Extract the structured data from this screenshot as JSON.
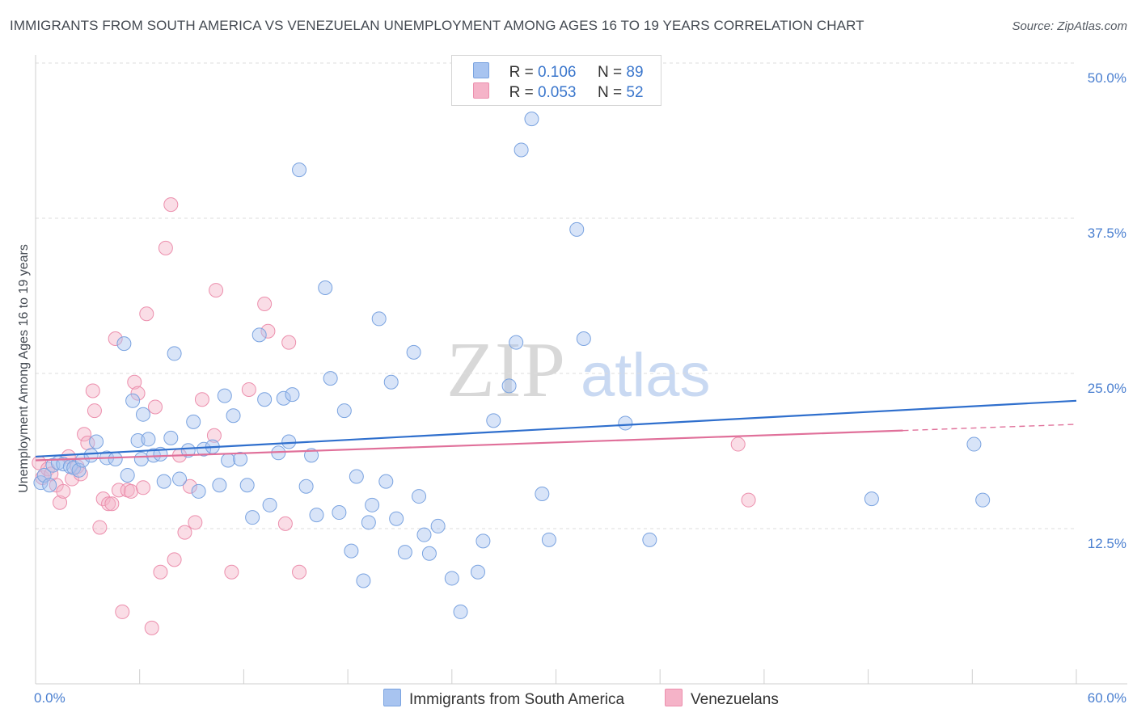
{
  "title": "IMMIGRANTS FROM SOUTH AMERICA VS VENEZUELAN UNEMPLOYMENT AMONG AGES 16 TO 19 YEARS CORRELATION CHART",
  "source": "Source: ZipAtlas.com",
  "watermark": {
    "zip": "ZIP",
    "atlas": "atlas"
  },
  "legend": {
    "rows": [
      {
        "r_label": "R = ",
        "r_value": "0.106",
        "n_label": "N = ",
        "n_value": "89",
        "color": "#a8c4f0"
      },
      {
        "r_label": "R = ",
        "r_value": "0.053",
        "n_label": "N = ",
        "n_value": "52",
        "color": "#f5b3c8"
      }
    ]
  },
  "bottom_legend": [
    {
      "label": "Immigrants from South America",
      "color": "#a8c4f0"
    },
    {
      "label": "Venezuelans",
      "color": "#f5b3c8"
    }
  ],
  "chart_data": {
    "type": "scatter",
    "title": "IMMIGRANTS FROM SOUTH AMERICA VS VENEZUELAN UNEMPLOYMENT AMONG AGES 16 TO 19 YEARS CORRELATION CHART",
    "xlabel": "",
    "ylabel": "Unemployment Among Ages 16 to 19 years",
    "xlim": [
      0,
      60
    ],
    "ylim": [
      0,
      50
    ],
    "x_tick_labels": [
      "0.0%",
      "60.0%"
    ],
    "y_ticks": [
      12.5,
      25.0,
      37.5,
      50.0
    ],
    "y_tick_labels": [
      "12.5%",
      "25.0%",
      "37.5%",
      "50.0%"
    ],
    "grid": true,
    "series": [
      {
        "name": "Immigrants from South America",
        "color": "#a8c4f0",
        "stroke": "#7aa3e0",
        "trend": {
          "x": [
            0,
            60
          ],
          "y": [
            18.3,
            22.8
          ],
          "color": "#2f6fcd"
        },
        "points": [
          [
            0.3,
            16.2
          ],
          [
            0.5,
            16.8
          ],
          [
            0.8,
            16.0
          ],
          [
            1.0,
            17.6
          ],
          [
            1.3,
            17.8
          ],
          [
            1.6,
            17.7
          ],
          [
            2.0,
            17.5
          ],
          [
            2.2,
            17.4
          ],
          [
            2.5,
            17.2
          ],
          [
            2.7,
            18.0
          ],
          [
            3.2,
            18.4
          ],
          [
            3.5,
            19.5
          ],
          [
            4.1,
            18.2
          ],
          [
            4.6,
            18.1
          ],
          [
            5.1,
            27.4
          ],
          [
            5.3,
            16.8
          ],
          [
            5.6,
            22.8
          ],
          [
            5.9,
            19.6
          ],
          [
            6.1,
            18.1
          ],
          [
            6.2,
            21.7
          ],
          [
            6.5,
            19.7
          ],
          [
            6.8,
            18.4
          ],
          [
            7.2,
            18.5
          ],
          [
            7.4,
            16.3
          ],
          [
            7.8,
            19.8
          ],
          [
            8.0,
            26.6
          ],
          [
            8.3,
            16.5
          ],
          [
            8.8,
            18.8
          ],
          [
            9.1,
            21.1
          ],
          [
            9.4,
            15.5
          ],
          [
            9.7,
            18.9
          ],
          [
            10.2,
            19.1
          ],
          [
            10.6,
            16.0
          ],
          [
            10.9,
            23.2
          ],
          [
            11.1,
            18.0
          ],
          [
            11.4,
            21.6
          ],
          [
            11.8,
            18.1
          ],
          [
            12.2,
            16.0
          ],
          [
            12.5,
            13.4
          ],
          [
            12.9,
            28.1
          ],
          [
            13.2,
            22.9
          ],
          [
            13.5,
            14.4
          ],
          [
            14.0,
            18.6
          ],
          [
            14.3,
            23.0
          ],
          [
            14.6,
            19.5
          ],
          [
            14.8,
            23.3
          ],
          [
            15.2,
            41.4
          ],
          [
            15.6,
            15.9
          ],
          [
            15.9,
            18.4
          ],
          [
            16.2,
            13.6
          ],
          [
            16.7,
            31.9
          ],
          [
            17.0,
            24.6
          ],
          [
            17.5,
            13.8
          ],
          [
            17.8,
            22.0
          ],
          [
            18.2,
            10.7
          ],
          [
            18.5,
            16.7
          ],
          [
            18.9,
            8.3
          ],
          [
            19.2,
            13.0
          ],
          [
            19.4,
            14.4
          ],
          [
            19.8,
            29.4
          ],
          [
            20.2,
            16.3
          ],
          [
            20.5,
            24.3
          ],
          [
            20.8,
            13.3
          ],
          [
            21.3,
            10.6
          ],
          [
            21.8,
            26.7
          ],
          [
            22.1,
            15.1
          ],
          [
            22.4,
            12.0
          ],
          [
            22.7,
            10.5
          ],
          [
            23.2,
            12.7
          ],
          [
            24.0,
            8.5
          ],
          [
            24.5,
            5.8
          ],
          [
            25.5,
            9.0
          ],
          [
            25.8,
            11.5
          ],
          [
            26.4,
            21.2
          ],
          [
            27.3,
            24.0
          ],
          [
            27.7,
            27.5
          ],
          [
            28.0,
            43.0
          ],
          [
            28.6,
            45.5
          ],
          [
            29.2,
            15.3
          ],
          [
            29.6,
            11.6
          ],
          [
            31.2,
            36.6
          ],
          [
            31.6,
            27.8
          ],
          [
            34.0,
            21.0
          ],
          [
            35.4,
            11.6
          ],
          [
            48.2,
            14.9
          ],
          [
            54.1,
            19.3
          ],
          [
            54.6,
            14.8
          ]
        ]
      },
      {
        "name": "Venezuelans",
        "color": "#f5b3c8",
        "stroke": "#ec8fad",
        "trend": {
          "x": [
            0,
            50
          ],
          "y": [
            18.0,
            20.4
          ],
          "x_dashed": [
            50,
            60
          ],
          "y_dashed": [
            20.4,
            20.9
          ],
          "color": "#e0709a"
        },
        "points": [
          [
            0.2,
            17.8
          ],
          [
            0.4,
            16.6
          ],
          [
            0.7,
            17.3
          ],
          [
            0.9,
            16.9
          ],
          [
            1.2,
            16.0
          ],
          [
            1.4,
            14.6
          ],
          [
            1.6,
            15.5
          ],
          [
            1.9,
            18.3
          ],
          [
            2.1,
            16.5
          ],
          [
            2.4,
            17.5
          ],
          [
            2.6,
            16.9
          ],
          [
            2.8,
            20.1
          ],
          [
            3.0,
            19.4
          ],
          [
            3.3,
            23.6
          ],
          [
            3.4,
            22.0
          ],
          [
            3.7,
            12.6
          ],
          [
            3.9,
            14.9
          ],
          [
            4.2,
            14.5
          ],
          [
            4.4,
            14.5
          ],
          [
            4.6,
            27.8
          ],
          [
            4.8,
            15.6
          ],
          [
            5.0,
            5.8
          ],
          [
            5.3,
            15.6
          ],
          [
            5.5,
            15.5
          ],
          [
            5.7,
            24.3
          ],
          [
            5.9,
            23.4
          ],
          [
            6.2,
            15.8
          ],
          [
            6.4,
            29.8
          ],
          [
            6.7,
            4.5
          ],
          [
            6.9,
            22.3
          ],
          [
            7.2,
            9.0
          ],
          [
            7.5,
            35.1
          ],
          [
            7.8,
            38.6
          ],
          [
            8.0,
            10.0
          ],
          [
            8.3,
            18.4
          ],
          [
            8.6,
            12.2
          ],
          [
            8.9,
            15.9
          ],
          [
            9.2,
            13.0
          ],
          [
            9.6,
            22.9
          ],
          [
            10.3,
            20.0
          ],
          [
            10.4,
            31.7
          ],
          [
            11.3,
            9.0
          ],
          [
            12.3,
            23.7
          ],
          [
            13.2,
            30.6
          ],
          [
            13.4,
            28.4
          ],
          [
            14.4,
            12.9
          ],
          [
            14.6,
            27.5
          ],
          [
            15.2,
            9.0
          ],
          [
            40.5,
            19.3
          ],
          [
            41.1,
            14.8
          ]
        ]
      }
    ]
  }
}
